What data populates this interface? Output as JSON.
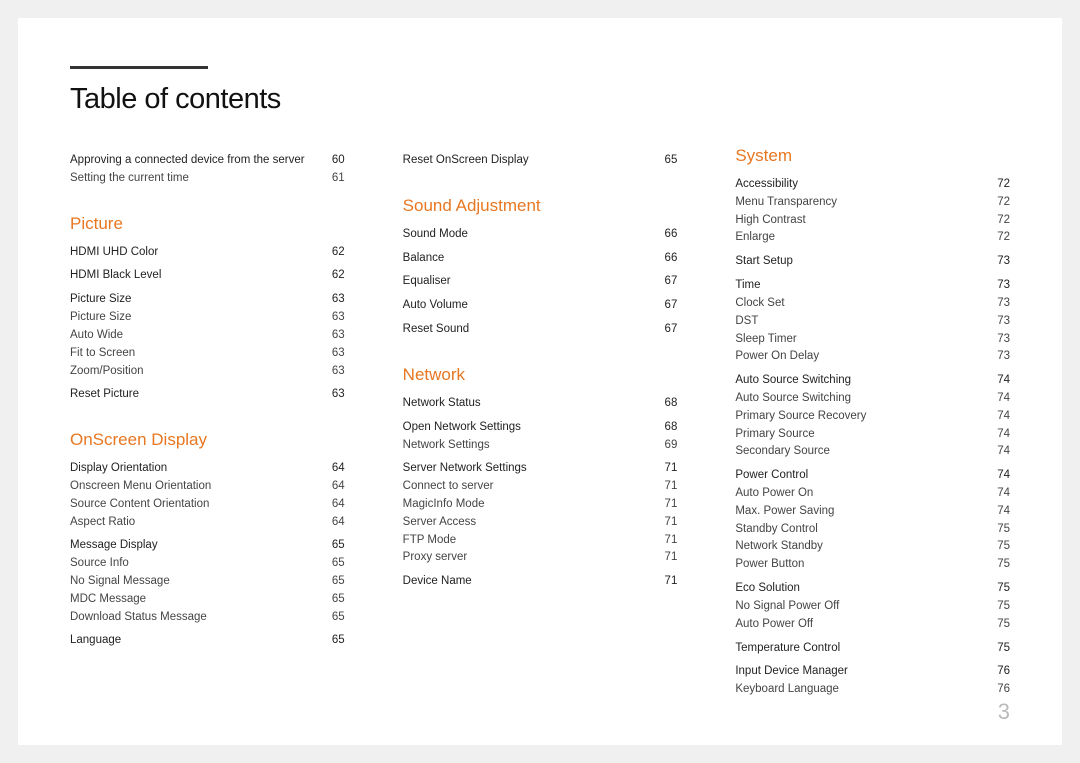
{
  "title": "Table of contents",
  "pageNumber": "3",
  "colors": {
    "accent": "#e87722",
    "bar": "#333333",
    "text": "#222222",
    "bg": "#ffffff"
  },
  "columns": [
    {
      "blocks": [
        {
          "rows": [
            {
              "label": "Approving a connected device from the server",
              "page": "60",
              "type": "main"
            },
            {
              "label": "Setting the current time",
              "page": "61",
              "type": "sub"
            }
          ]
        },
        {
          "heading": "Picture",
          "rows": [
            {
              "label": "HDMI UHD Color",
              "page": "62",
              "type": "main"
            },
            {
              "label": "HDMI Black Level",
              "page": "62",
              "type": "main"
            },
            {
              "label": "Picture Size",
              "page": "63",
              "type": "main"
            },
            {
              "label": "Picture Size",
              "page": "63",
              "type": "sub"
            },
            {
              "label": "Auto Wide",
              "page": "63",
              "type": "sub"
            },
            {
              "label": "Fit to Screen",
              "page": "63",
              "type": "sub"
            },
            {
              "label": "Zoom/Position",
              "page": "63",
              "type": "sub"
            },
            {
              "label": "Reset Picture",
              "page": "63",
              "type": "main"
            }
          ]
        },
        {
          "heading": "OnScreen Display",
          "rows": [
            {
              "label": "Display Orientation",
              "page": "64",
              "type": "main"
            },
            {
              "label": "Onscreen Menu Orientation",
              "page": "64",
              "type": "sub"
            },
            {
              "label": "Source Content Orientation",
              "page": "64",
              "type": "sub"
            },
            {
              "label": "Aspect Ratio",
              "page": "64",
              "type": "sub"
            },
            {
              "label": "Message Display",
              "page": "65",
              "type": "main"
            },
            {
              "label": "Source Info",
              "page": "65",
              "type": "sub"
            },
            {
              "label": "No Signal Message",
              "page": "65",
              "type": "sub"
            },
            {
              "label": "MDC Message",
              "page": "65",
              "type": "sub"
            },
            {
              "label": "Download Status Message",
              "page": "65",
              "type": "sub"
            },
            {
              "label": "Language",
              "page": "65",
              "type": "main"
            }
          ]
        }
      ]
    },
    {
      "blocks": [
        {
          "rows": [
            {
              "label": "Reset OnScreen Display",
              "page": "65",
              "type": "main"
            }
          ]
        },
        {
          "heading": "Sound Adjustment",
          "rows": [
            {
              "label": "Sound Mode",
              "page": "66",
              "type": "main"
            },
            {
              "label": "Balance",
              "page": "66",
              "type": "main"
            },
            {
              "label": "Equaliser",
              "page": "67",
              "type": "main"
            },
            {
              "label": "Auto Volume",
              "page": "67",
              "type": "main"
            },
            {
              "label": "Reset Sound",
              "page": "67",
              "type": "main"
            }
          ]
        },
        {
          "heading": "Network",
          "rows": [
            {
              "label": "Network Status",
              "page": "68",
              "type": "main"
            },
            {
              "label": "Open Network Settings",
              "page": "68",
              "type": "main"
            },
            {
              "label": "Network Settings",
              "page": "69",
              "type": "sub"
            },
            {
              "label": "Server Network Settings",
              "page": "71",
              "type": "main"
            },
            {
              "label": "Connect to server",
              "page": "71",
              "type": "sub"
            },
            {
              "label": "MagicInfo Mode",
              "page": "71",
              "type": "sub"
            },
            {
              "label": "Server Access",
              "page": "71",
              "type": "sub"
            },
            {
              "label": "FTP Mode",
              "page": "71",
              "type": "sub"
            },
            {
              "label": "Proxy server",
              "page": "71",
              "type": "sub"
            },
            {
              "label": "Device Name",
              "page": "71",
              "type": "main"
            }
          ]
        }
      ]
    },
    {
      "blocks": [
        {
          "heading": "System",
          "rows": [
            {
              "label": "Accessibility",
              "page": "72",
              "type": "main"
            },
            {
              "label": "Menu Transparency",
              "page": "72",
              "type": "sub"
            },
            {
              "label": "High Contrast",
              "page": "72",
              "type": "sub"
            },
            {
              "label": "Enlarge",
              "page": "72",
              "type": "sub"
            },
            {
              "label": "Start Setup",
              "page": "73",
              "type": "main"
            },
            {
              "label": "Time",
              "page": "73",
              "type": "main"
            },
            {
              "label": "Clock Set",
              "page": "73",
              "type": "sub"
            },
            {
              "label": "DST",
              "page": "73",
              "type": "sub"
            },
            {
              "label": "Sleep Timer",
              "page": "73",
              "type": "sub"
            },
            {
              "label": "Power On Delay",
              "page": "73",
              "type": "sub"
            },
            {
              "label": "Auto Source Switching",
              "page": "74",
              "type": "main"
            },
            {
              "label": "Auto Source Switching",
              "page": "74",
              "type": "sub"
            },
            {
              "label": "Primary Source Recovery",
              "page": "74",
              "type": "sub"
            },
            {
              "label": "Primary Source",
              "page": "74",
              "type": "sub"
            },
            {
              "label": "Secondary Source",
              "page": "74",
              "type": "sub"
            },
            {
              "label": "Power Control",
              "page": "74",
              "type": "main"
            },
            {
              "label": "Auto Power On",
              "page": "74",
              "type": "sub"
            },
            {
              "label": "Max. Power Saving",
              "page": "74",
              "type": "sub"
            },
            {
              "label": "Standby Control",
              "page": "75",
              "type": "sub"
            },
            {
              "label": "Network Standby",
              "page": "75",
              "type": "sub"
            },
            {
              "label": "Power Button",
              "page": "75",
              "type": "sub"
            },
            {
              "label": "Eco Solution",
              "page": "75",
              "type": "main"
            },
            {
              "label": "No Signal Power Off",
              "page": "75",
              "type": "sub"
            },
            {
              "label": "Auto Power Off",
              "page": "75",
              "type": "sub"
            },
            {
              "label": "Temperature Control",
              "page": "75",
              "type": "main"
            },
            {
              "label": "Input Device Manager",
              "page": "76",
              "type": "main"
            },
            {
              "label": "Keyboard Language",
              "page": "76",
              "type": "sub"
            }
          ]
        }
      ]
    }
  ]
}
